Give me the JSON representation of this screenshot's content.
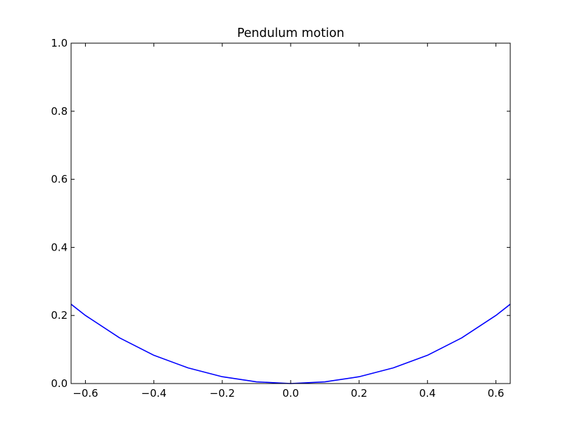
{
  "chart_data": {
    "type": "line",
    "title": "Pendulum motion",
    "xlabel": "",
    "ylabel": "",
    "xlim": [
      -0.642,
      0.642
    ],
    "ylim": [
      0.0,
      1.0
    ],
    "xticks": [
      -0.6,
      -0.4,
      -0.2,
      0.0,
      0.2,
      0.4,
      0.6
    ],
    "xtick_labels": [
      "−0.6",
      "−0.4",
      "−0.2",
      "0.0",
      "0.2",
      "0.4",
      "0.6"
    ],
    "yticks": [
      0.0,
      0.2,
      0.4,
      0.6,
      0.8,
      1.0
    ],
    "ytick_labels": [
      "0.0",
      "0.2",
      "0.4",
      "0.6",
      "0.8",
      "1.0"
    ],
    "grid": false,
    "series": [
      {
        "color": "#0000ff",
        "x": [
          -0.642,
          -0.6,
          -0.5,
          -0.4,
          -0.3,
          -0.2,
          -0.1,
          0.0,
          0.1,
          0.2,
          0.3,
          0.4,
          0.5,
          0.6,
          0.642
        ],
        "y": [
          0.233,
          0.2,
          0.134,
          0.083,
          0.046,
          0.02,
          0.005,
          0.0,
          0.005,
          0.02,
          0.046,
          0.083,
          0.134,
          0.2,
          0.233
        ]
      }
    ]
  }
}
